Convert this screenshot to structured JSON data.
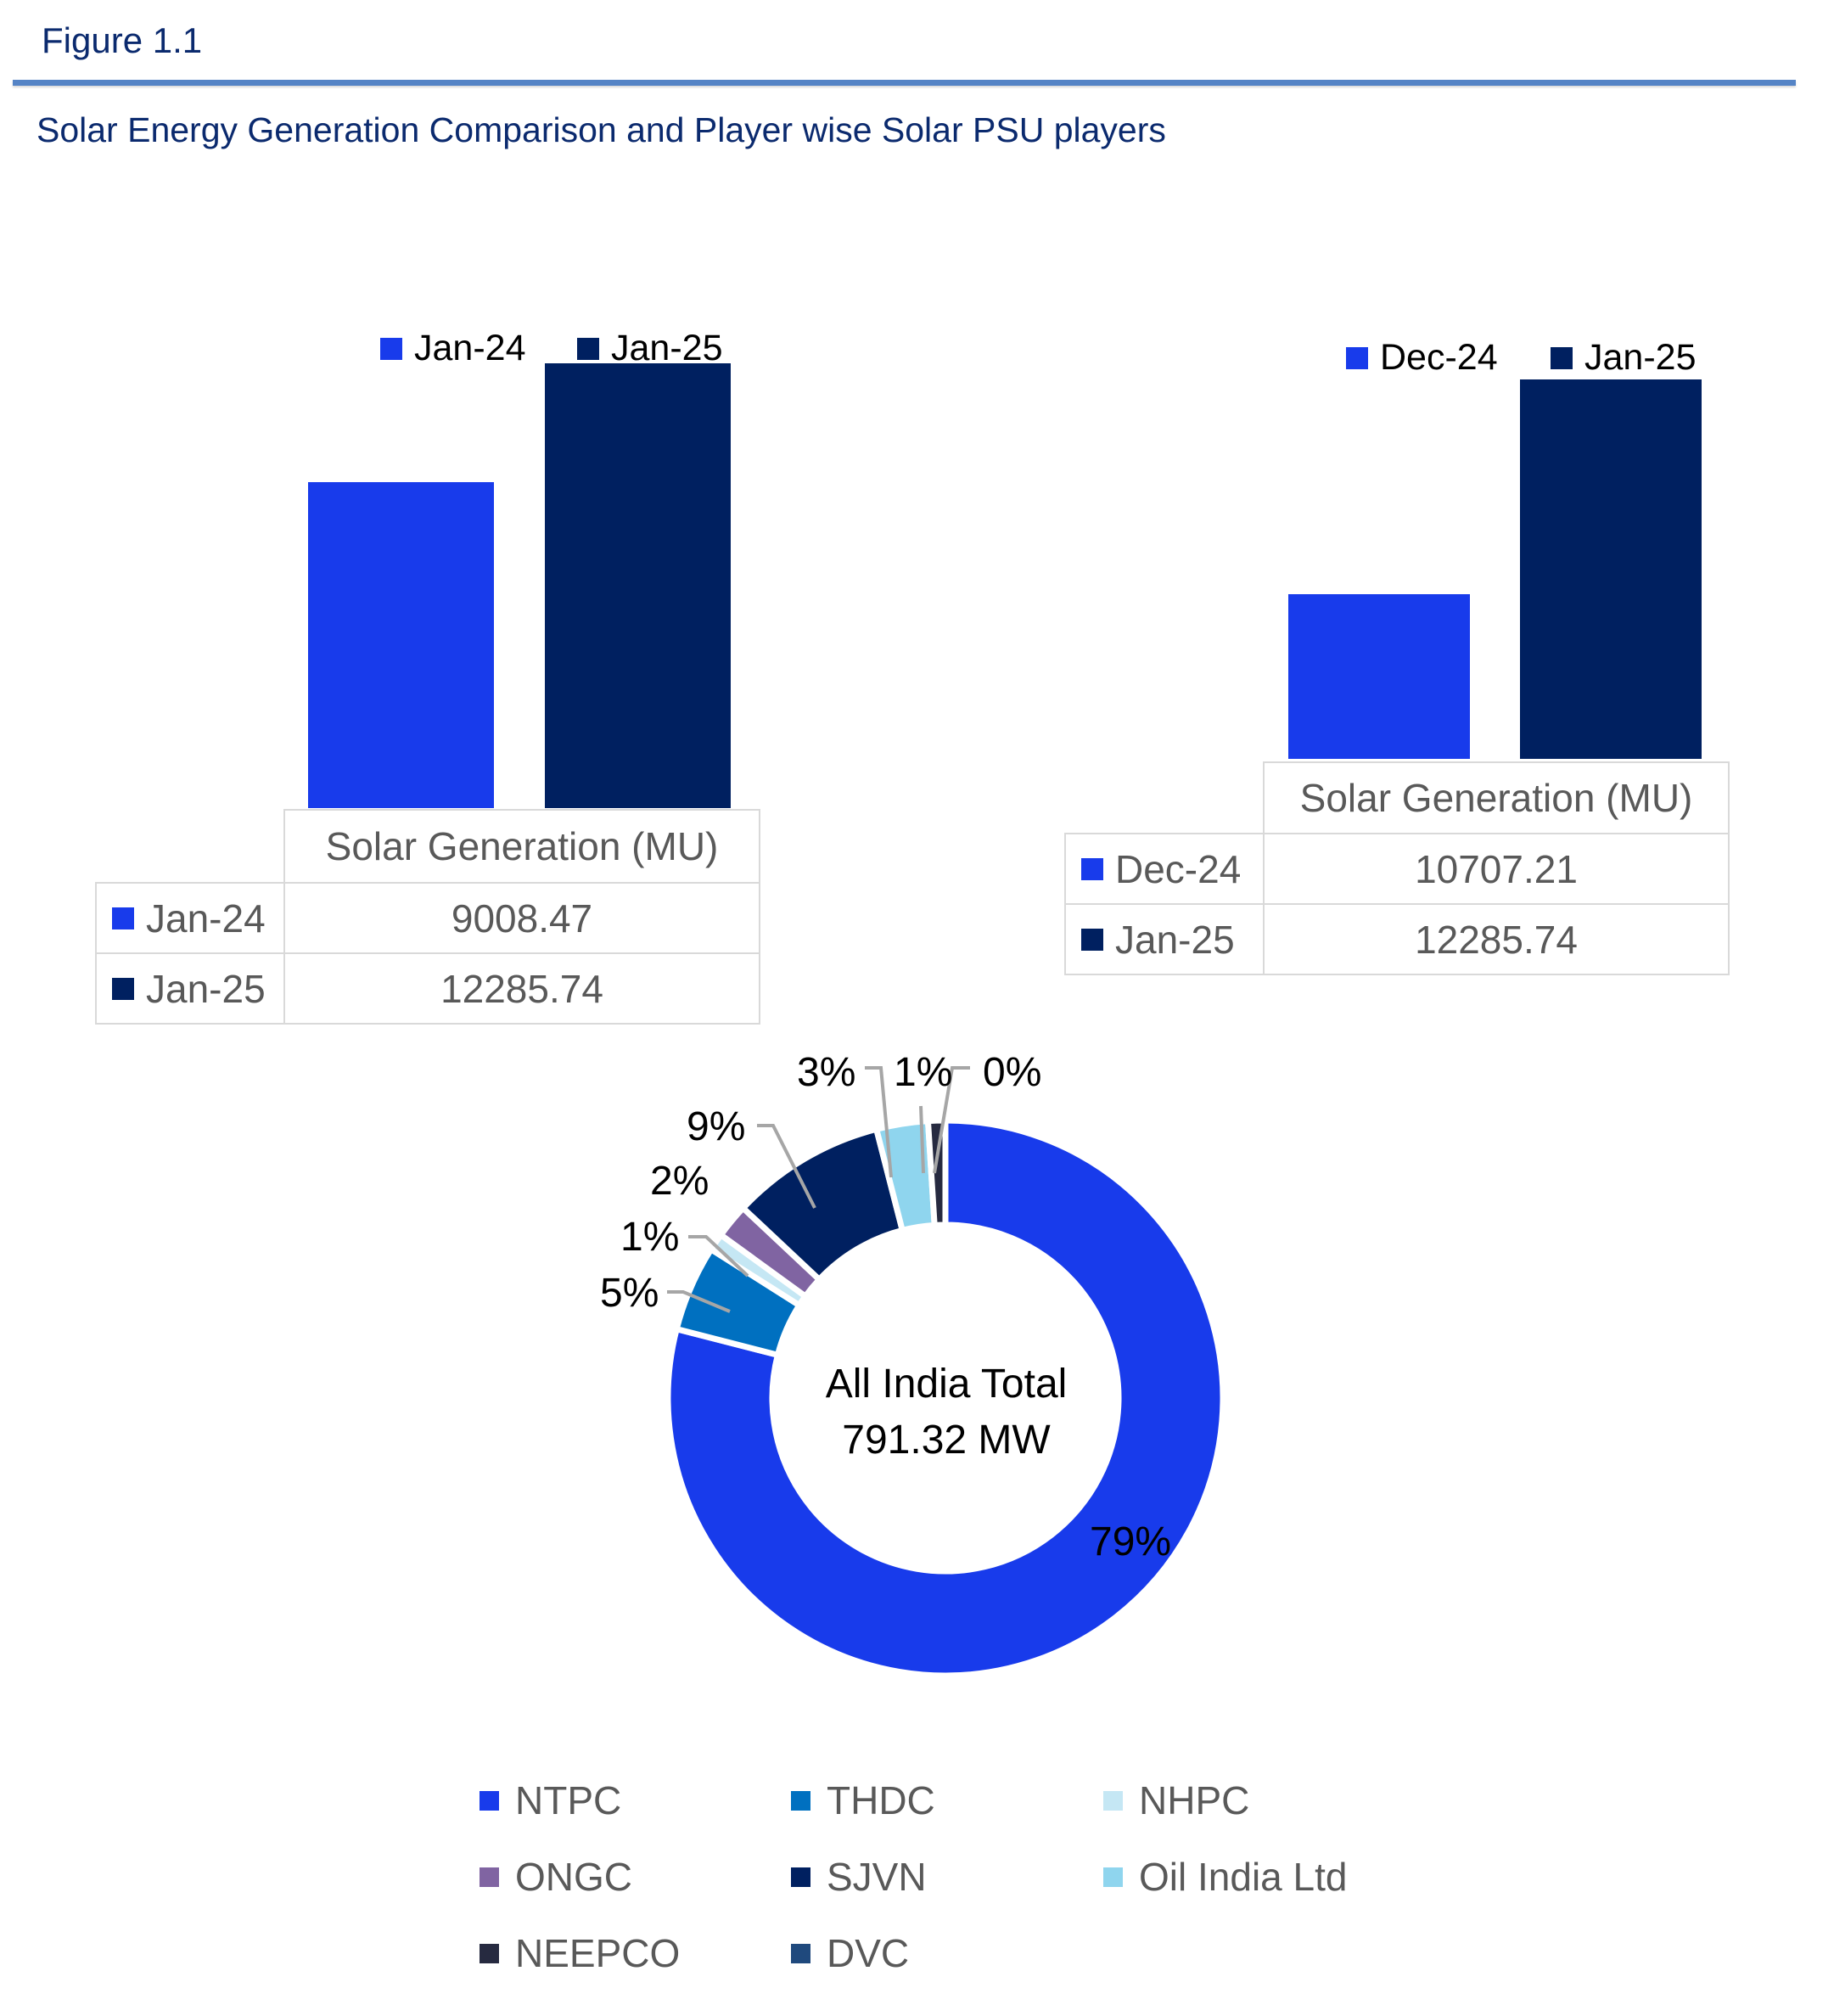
{
  "header": {
    "figure_label": "Figure 1.1",
    "subtitle": "Solar Energy Generation Comparison and Player wise Solar PSU players"
  },
  "chart_data": [
    {
      "type": "bar",
      "categories": [
        "Solar Generation (MU)"
      ],
      "series": [
        {
          "name": "Jan-24",
          "values": [
            9008.47
          ],
          "color": "#183beb",
          "display": "9008.47"
        },
        {
          "name": "Jan-25",
          "values": [
            12285.74
          ],
          "color": "#002060",
          "display": "12285.74"
        }
      ],
      "ylim": [
        0,
        12500
      ],
      "legend": "top",
      "data_table": true,
      "grid": false
    },
    {
      "type": "bar",
      "categories": [
        "Solar Generation (MU)"
      ],
      "series": [
        {
          "name": "Dec-24",
          "values": [
            10707.21
          ],
          "color": "#183beb",
          "display": "10707.21"
        },
        {
          "name": "Jan-25",
          "values": [
            12285.74
          ],
          "color": "#002060",
          "display": "12285.74"
        }
      ],
      "ylim": [
        9500,
        12500
      ],
      "legend": "top",
      "data_table": true,
      "grid": false
    },
    {
      "type": "pie",
      "donut": true,
      "center_text": [
        "All India Total",
        "791.32 MW"
      ],
      "slices": [
        {
          "name": "NTPC",
          "percent": 79,
          "label": "79%",
          "color": "#183beb"
        },
        {
          "name": "THDC",
          "percent": 5,
          "label": "5%",
          "color": "#0070c0"
        },
        {
          "name": "NHPC",
          "percent": 1,
          "label": "1%",
          "color": "#c5e7f4"
        },
        {
          "name": "ONGC",
          "percent": 2,
          "label": "2%",
          "color": "#8064a2"
        },
        {
          "name": "SJVN",
          "percent": 9,
          "label": "9%",
          "color": "#002060"
        },
        {
          "name": "Oil India Ltd",
          "percent": 3,
          "label": "3%",
          "color": "#8fd5ee"
        },
        {
          "name": "NEEPCO",
          "percent": 1,
          "label": "1%",
          "color": "#262a40"
        },
        {
          "name": "DVC",
          "percent": 0,
          "label": "0%",
          "color": "#1f497d"
        }
      ],
      "legend": "bottom"
    }
  ]
}
